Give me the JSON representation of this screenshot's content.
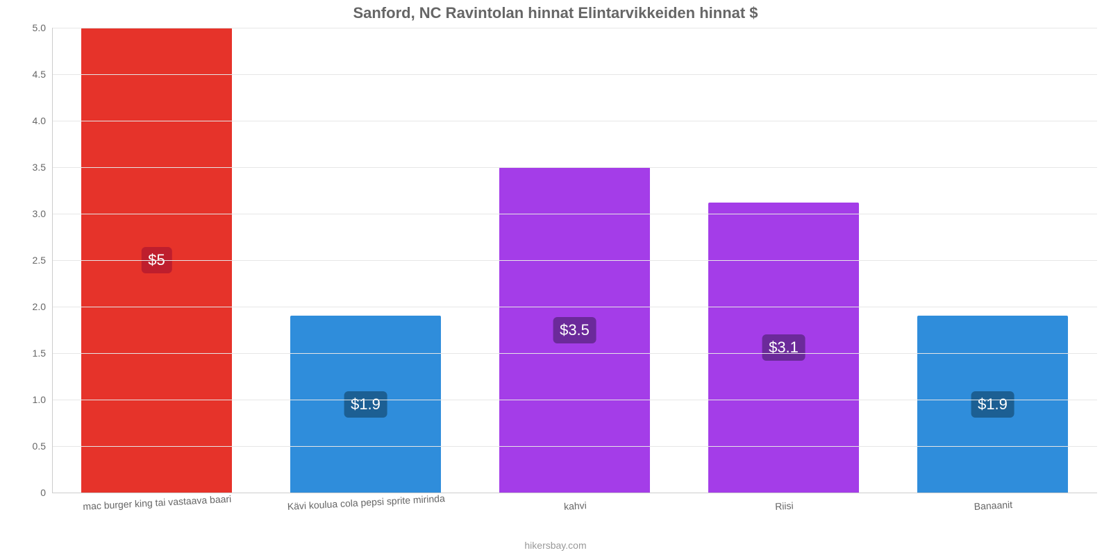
{
  "chart": {
    "type": "bar",
    "title": "Sanford, NC Ravintolan hinnat Elintarvikkeiden hinnat $",
    "title_color": "#666666",
    "title_fontsize": 22,
    "credit": "hikersbay.com",
    "credit_color": "#999999",
    "background_color": "#ffffff",
    "grid_color": "#e6e6e6",
    "axis_color": "#cccccc",
    "tick_label_color": "#666666",
    "tick_fontsize": 14,
    "ylim": [
      0,
      5.0
    ],
    "ytick_step": 0.5,
    "yticks": [
      {
        "v": 0,
        "label": "0"
      },
      {
        "v": 0.5,
        "label": "0.5"
      },
      {
        "v": 1.0,
        "label": "1.0"
      },
      {
        "v": 1.5,
        "label": "1.5"
      },
      {
        "v": 2.0,
        "label": "2.0"
      },
      {
        "v": 2.5,
        "label": "2.5"
      },
      {
        "v": 3.0,
        "label": "3.0"
      },
      {
        "v": 3.5,
        "label": "3.5"
      },
      {
        "v": 4.0,
        "label": "4.0"
      },
      {
        "v": 4.5,
        "label": "4.5"
      },
      {
        "v": 5.0,
        "label": "5.0"
      }
    ],
    "bar_width_ratio": 0.72,
    "value_label_fontsize": 22,
    "value_label_text_color": "#ffffff",
    "value_label_radius": 6,
    "categories": [
      {
        "label": "mac burger king tai vastaava baari",
        "value": 5.0,
        "display": "$5",
        "color": "#e6332a",
        "badge_color": "#be1e2d"
      },
      {
        "label": "Kävi koulua cola pepsi sprite mirinda",
        "value": 1.9,
        "display": "$1.9",
        "color": "#2f8ddb",
        "badge_color": "#1c5f93"
      },
      {
        "label": "kahvi",
        "value": 3.5,
        "display": "$3.5",
        "color": "#a43de8",
        "badge_color": "#6b2a9a"
      },
      {
        "label": "Riisi",
        "value": 3.12,
        "display": "$3.1",
        "color": "#a43de8",
        "badge_color": "#6b2a9a"
      },
      {
        "label": "Banaanit",
        "value": 1.9,
        "display": "$1.9",
        "color": "#2f8ddb",
        "badge_color": "#1c5f93"
      }
    ],
    "xlabel_rotation_deg": -3
  }
}
